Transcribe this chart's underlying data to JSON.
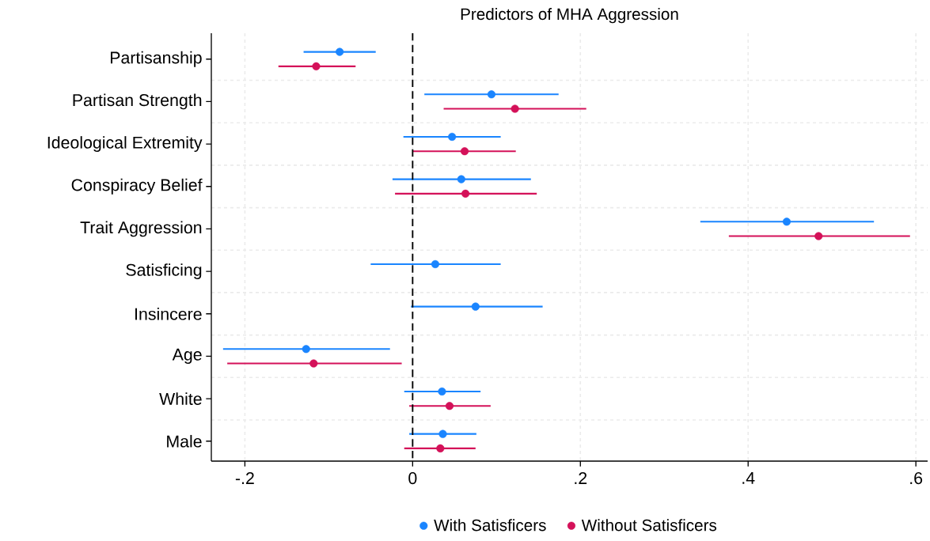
{
  "chart_data": {
    "type": "scatter",
    "orientation": "horizontal",
    "title": "Predictors of MHA Aggression",
    "categories": [
      "Partisanship",
      "Partisan Strength",
      "Ideological Extremity",
      "Conspiracy Belief",
      "Trait Aggression",
      "Satisficing",
      "Insincere",
      "Age",
      "White",
      "Male"
    ],
    "series": [
      {
        "name": "With Satisficers",
        "color": "#1a85ff",
        "values": [
          -0.087,
          0.094,
          0.047,
          0.058,
          0.446,
          0.027,
          0.075,
          -0.127,
          0.035,
          0.036
        ],
        "errors": [
          [
            -0.13,
            -0.044
          ],
          [
            0.014,
            0.174
          ],
          [
            -0.011,
            0.105
          ],
          [
            -0.024,
            0.141
          ],
          [
            0.343,
            0.55
          ],
          [
            -0.05,
            0.105
          ],
          [
            -0.002,
            0.155
          ],
          [
            -0.226,
            -0.027
          ],
          [
            -0.01,
            0.081
          ],
          [
            -0.004,
            0.076
          ]
        ]
      },
      {
        "name": "Without Satisficers",
        "color": "#d41159",
        "values": [
          -0.115,
          0.122,
          0.062,
          0.063,
          0.484,
          null,
          null,
          -0.118,
          0.044,
          0.033
        ],
        "errors": [
          [
            -0.16,
            -0.068
          ],
          [
            0.037,
            0.207
          ],
          [
            0.0,
            0.123
          ],
          [
            -0.021,
            0.148
          ],
          [
            0.377,
            0.593
          ],
          null,
          null,
          [
            -0.221,
            -0.013
          ],
          [
            -0.004,
            0.093
          ],
          [
            -0.01,
            0.075
          ]
        ]
      }
    ],
    "xlim": [
      -0.24,
      0.614
    ],
    "xticks": [
      {
        "value": -0.2,
        "label": "-.2"
      },
      0,
      {
        "value": 0.2,
        "label": ".2"
      },
      {
        "value": 0.4,
        "label": ".4"
      },
      {
        "value": 0.6,
        "label": ".6"
      }
    ],
    "ref_lines": [
      {
        "axis": "x",
        "value": 0,
        "color": "#000000",
        "line_style": "dashed"
      }
    ],
    "grid": true,
    "legend": "bottom",
    "marker": "circle"
  }
}
